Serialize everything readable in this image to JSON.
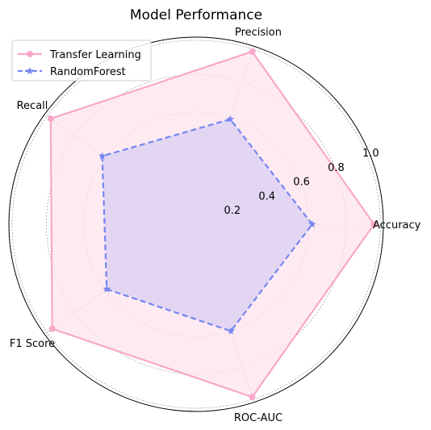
{
  "chart_data": {
    "type": "radar",
    "title": "Model Performance",
    "axes": [
      "Accuracy",
      "Precision",
      "Recall",
      "F1 Score",
      "ROC-AUC"
    ],
    "rlim": [
      0,
      1.0
    ],
    "rticks": [
      0.2,
      0.4,
      0.6,
      0.8,
      1.0
    ],
    "rtick_labels": [
      "0.2",
      "0.4",
      "0.6",
      "0.8",
      "1.0"
    ],
    "grid": true,
    "legend_position": "top-left",
    "series": [
      {
        "name": "Transfer Learning",
        "values": [
          0.95,
          0.97,
          0.96,
          0.95,
          0.97
        ],
        "color": "#f9a8c9",
        "fill": "#fde4ee",
        "line_style": "solid",
        "marker": "circle"
      },
      {
        "name": "RandomForest",
        "values": [
          0.62,
          0.59,
          0.62,
          0.59,
          0.6
        ],
        "color": "#7585f0",
        "fill": "#d8cff3",
        "line_style": "dashed",
        "marker": "star"
      }
    ]
  }
}
